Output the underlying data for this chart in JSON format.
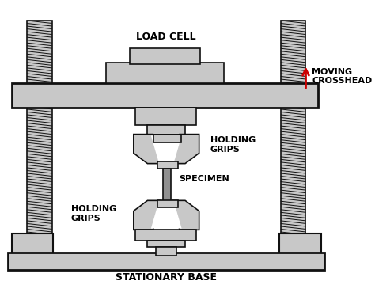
{
  "bg_color": "#ffffff",
  "gray_fill": "#c8c8c8",
  "gray_dark": "#aaaaaa",
  "dark_outline": "#111111",
  "red_arrow": "#cc0000",
  "text_color": "#000000",
  "labels": {
    "load_cell": "LOAD CELL",
    "moving_crosshead": "MOVING\nCROSSHEAD",
    "holding_grips_top": "HOLDING\nGRIPS",
    "specimen": "SPECIMEN",
    "holding_grips_bottom": "HOLDING\nGRIPS",
    "stationary_base": "STATIONARY BASE"
  },
  "figsize": [
    4.74,
    3.79
  ],
  "dpi": 100
}
